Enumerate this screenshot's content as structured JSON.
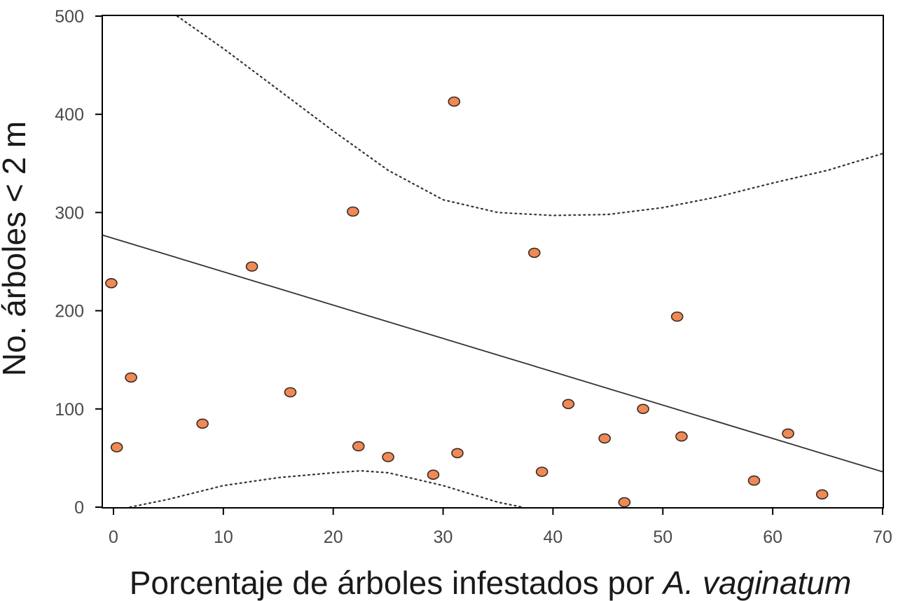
{
  "chart_data": {
    "type": "scatter",
    "title": "",
    "xlabel": "Porcentaje de árboles infestados por",
    "xlabel_italic": "A. vaginatum",
    "ylabel": "No. árboles < 2 m",
    "xlim": [
      0,
      70
    ],
    "ylim": [
      0,
      500
    ],
    "xticks": [
      0,
      10,
      20,
      30,
      40,
      50,
      60,
      70
    ],
    "yticks": [
      0,
      100,
      200,
      300,
      400,
      500
    ],
    "grid": false,
    "legend": "none",
    "marker_color": "#ef8a56",
    "marker_edge_color": "#3a2a20",
    "line_color": "#333333",
    "points": [
      {
        "x": -0.2,
        "y": 228
      },
      {
        "x": 0.3,
        "y": 61
      },
      {
        "x": 1.6,
        "y": 132
      },
      {
        "x": 8.1,
        "y": 85
      },
      {
        "x": 12.6,
        "y": 245
      },
      {
        "x": 16.1,
        "y": 117
      },
      {
        "x": 21.8,
        "y": 301
      },
      {
        "x": 22.3,
        "y": 62
      },
      {
        "x": 25.0,
        "y": 51
      },
      {
        "x": 29.1,
        "y": 33
      },
      {
        "x": 31.0,
        "y": 413
      },
      {
        "x": 31.3,
        "y": 55
      },
      {
        "x": 38.3,
        "y": 259
      },
      {
        "x": 39.0,
        "y": 36
      },
      {
        "x": 41.4,
        "y": 105
      },
      {
        "x": 44.7,
        "y": 70
      },
      {
        "x": 46.5,
        "y": 5
      },
      {
        "x": 48.2,
        "y": 100
      },
      {
        "x": 51.3,
        "y": 194
      },
      {
        "x": 51.7,
        "y": 72
      },
      {
        "x": 58.3,
        "y": 27
      },
      {
        "x": 61.4,
        "y": 75
      },
      {
        "x": 64.5,
        "y": 13
      }
    ],
    "regression_line": {
      "x": [
        -1,
        70
      ],
      "y": [
        277,
        36
      ]
    },
    "confidence_upper": {
      "x": [
        5.8,
        10,
        15,
        20,
        25,
        30,
        35,
        40,
        45,
        50,
        55,
        60,
        65,
        70
      ],
      "y": [
        500,
        467,
        425,
        383,
        343,
        313,
        300,
        297,
        298,
        305,
        316,
        330,
        343,
        360
      ]
    },
    "confidence_lower": {
      "x": [
        1.5,
        5,
        10,
        15,
        20,
        22.5,
        25,
        30,
        35,
        37.2
      ],
      "y": [
        0,
        8,
        22,
        30,
        35,
        37,
        35,
        22,
        5,
        0
      ]
    }
  }
}
